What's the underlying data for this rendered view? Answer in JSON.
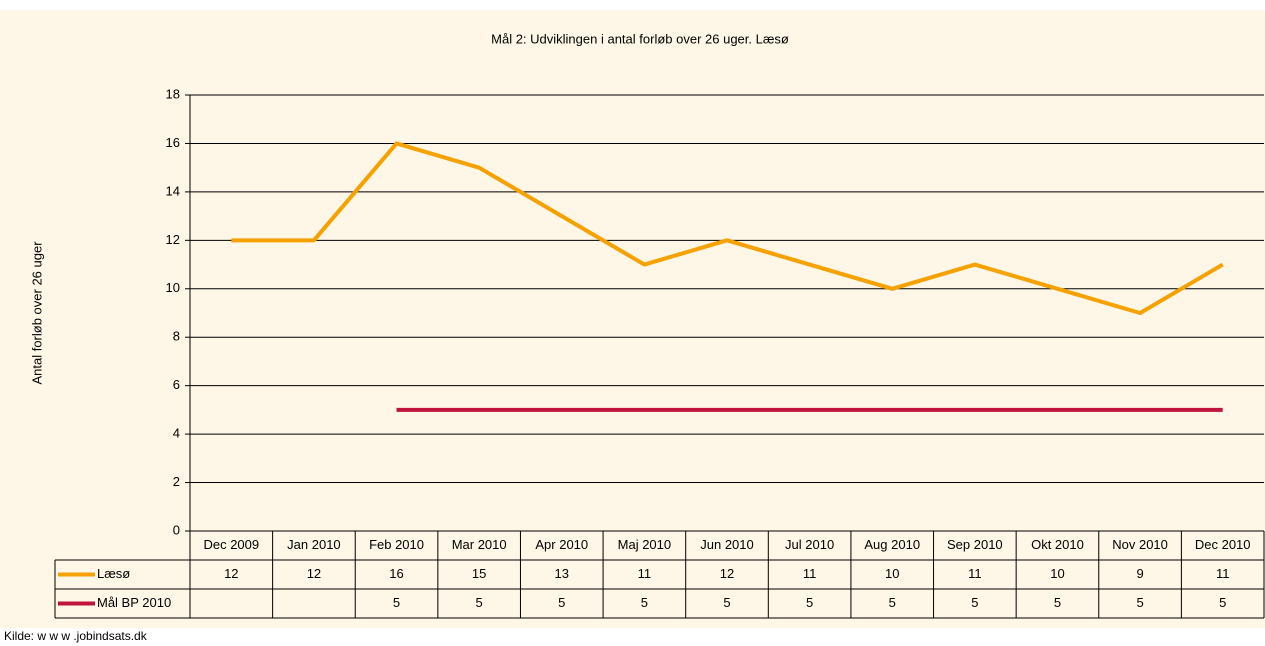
{
  "chart_data": {
    "type": "line",
    "title": "Mål 2: Udviklingen i antal forløb over 26 uger. Læsø",
    "y_label": "Antal forløb over 26 uger",
    "source": "Kilde: w w w .jobindsats.dk",
    "categories": [
      "Dec 2009",
      "Jan 2010",
      "Feb 2010",
      "Mar 2010",
      "Apr 2010",
      "Maj 2010",
      "Jun 2010",
      "Jul 2010",
      "Aug 2010",
      "Sep 2010",
      "Okt 2010",
      "Nov 2010",
      "Dec 2010"
    ],
    "series": [
      {
        "name": "Læsø",
        "color": "#f5a200",
        "values": [
          12,
          12,
          16,
          15,
          13,
          11,
          12,
          11,
          10,
          11,
          10,
          9,
          11
        ]
      },
      {
        "name": "Mål BP 2010",
        "color": "#c0143c",
        "values": [
          null,
          null,
          5,
          5,
          5,
          5,
          5,
          5,
          5,
          5,
          5,
          5,
          5
        ]
      }
    ],
    "ylim": [
      0,
      18
    ],
    "yticks": [
      0,
      2,
      4,
      6,
      8,
      10,
      12,
      14,
      16,
      18
    ],
    "grid": true,
    "data_table": true
  }
}
